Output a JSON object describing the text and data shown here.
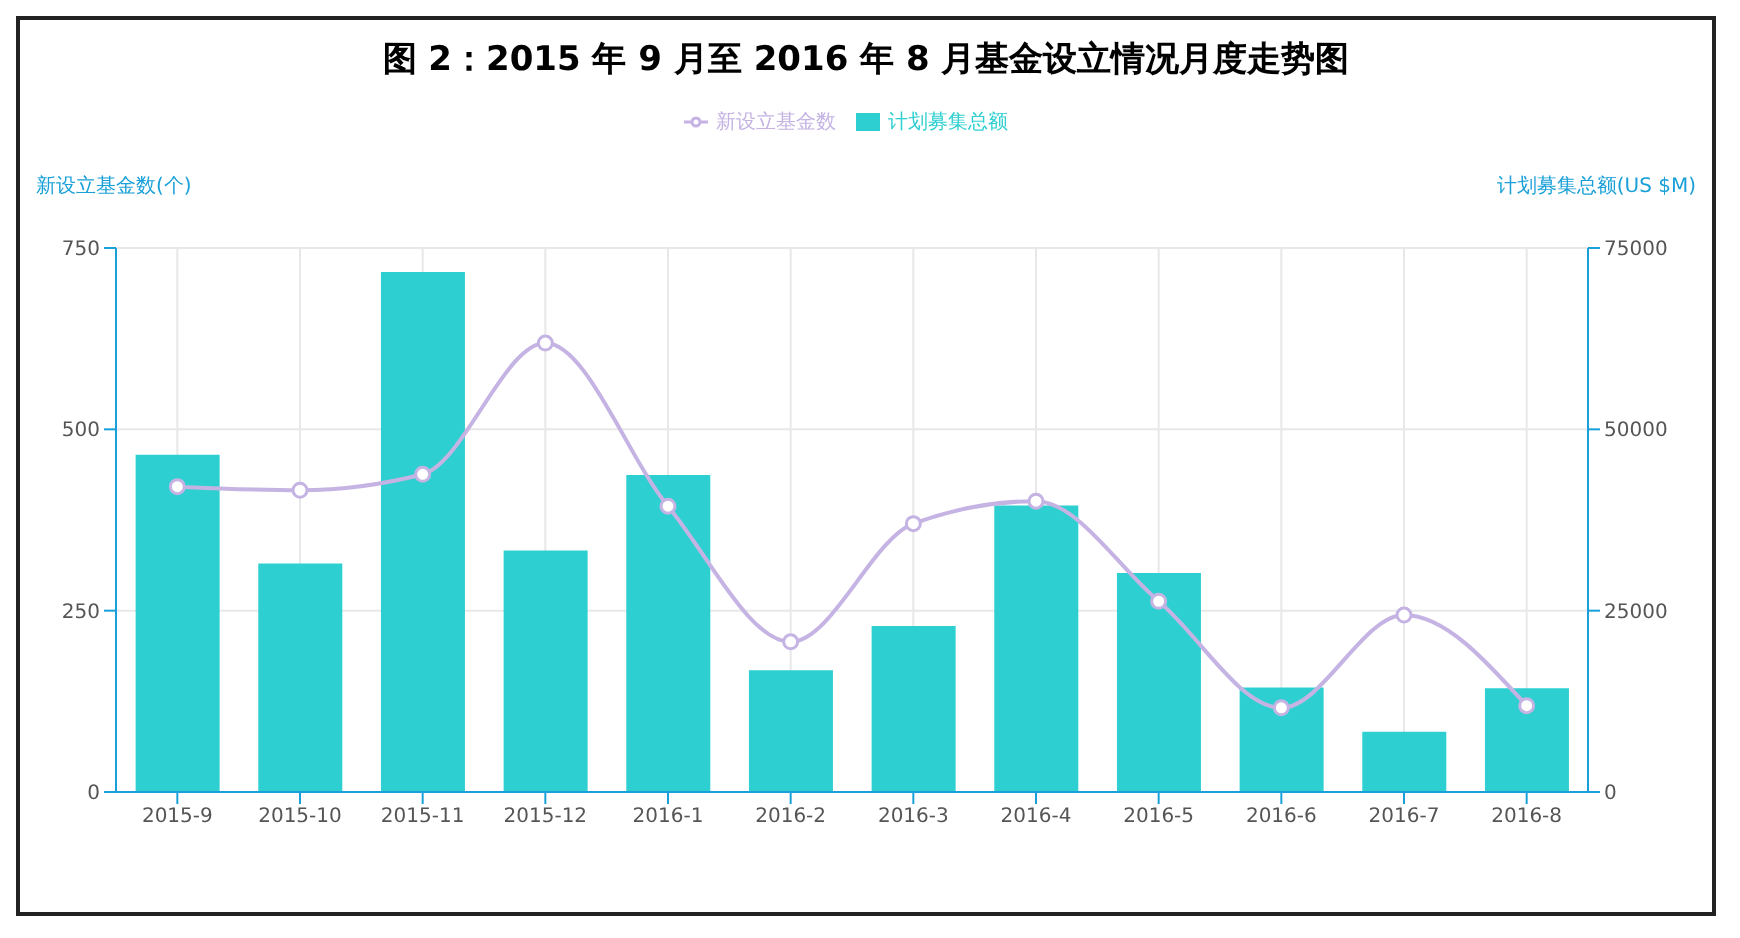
{
  "chart_data": {
    "type": "bar",
    "title": "图 2：2015 年 9 月至 2016 年 8 月基金设立情况月度走势图",
    "ylabel": "新设立基金数(个)",
    "y2label": "计划募集总额(US $M)",
    "categories": [
      "2015-9",
      "2015-10",
      "2015-11",
      "2015-12",
      "2016-1",
      "2016-2",
      "2016-3",
      "2016-4",
      "2016-5",
      "2016-6",
      "2016-7",
      "2016-8"
    ],
    "series": [
      {
        "name": "计划募集总额",
        "axis": "y2",
        "color": "#2ecfd1",
        "values": [
          46500,
          31500,
          71700,
          33300,
          43700,
          16800,
          22900,
          39500,
          30200,
          14400,
          8300,
          14300
        ]
      },
      {
        "name": "新设立基金数",
        "type": "line",
        "axis": "y",
        "color": "#c4b3e3",
        "values": [
          421,
          416,
          438,
          619,
          394,
          207,
          370,
          401,
          263,
          116,
          244,
          119
        ]
      }
    ],
    "ylim": [
      0,
      750
    ],
    "yticks": [
      0,
      250,
      500,
      750
    ],
    "y2lim": [
      0,
      75000
    ],
    "y2ticks": [
      0,
      25000,
      50000,
      75000
    ],
    "grid": true,
    "legend": "top",
    "marker": "circle",
    "line_style": "solid"
  }
}
